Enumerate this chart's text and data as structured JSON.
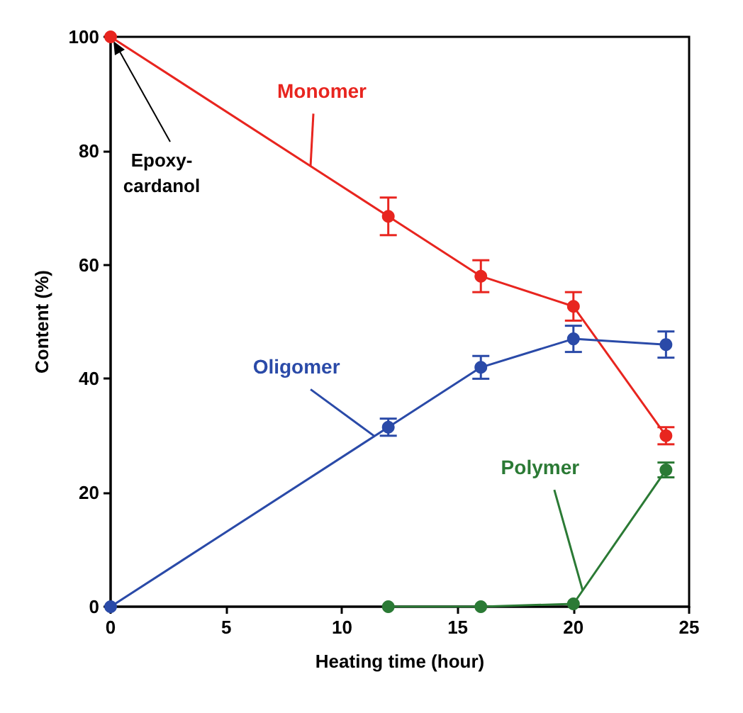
{
  "chart_data": {
    "type": "line",
    "xlabel": "Heating time (hour)",
    "ylabel": "Content (%)",
    "xlim": [
      0,
      25
    ],
    "xticks": [
      0,
      5,
      10,
      15,
      20,
      25
    ],
    "ylim": [
      0,
      100
    ],
    "yticks": [
      0,
      20,
      40,
      60,
      80,
      100
    ],
    "series": [
      {
        "name": "Monomer",
        "color": "#e8251f",
        "x": [
          0,
          12,
          16,
          20,
          24
        ],
        "values": [
          100,
          68.5,
          58,
          52.7,
          30
        ],
        "errors": [
          null,
          3.3,
          2.8,
          2.5,
          1.5
        ]
      },
      {
        "name": "Oligomer",
        "color": "#2a4aa8",
        "x": [
          0,
          12,
          16,
          20,
          24
        ],
        "values": [
          0,
          31.5,
          42,
          47,
          46
        ],
        "errors": [
          null,
          1.5,
          2.0,
          2.3,
          2.3
        ]
      },
      {
        "name": "Polymer",
        "color": "#2b7a35",
        "x": [
          12,
          16,
          20,
          24
        ],
        "values": [
          0,
          0,
          0.5,
          24
        ],
        "errors": [
          null,
          null,
          null,
          1.3
        ]
      }
    ],
    "annotations": [
      {
        "text": "Epoxy-\ncardanol",
        "x": 0,
        "y": 100
      }
    ],
    "marker": "circle",
    "line_style": "solid",
    "grid": false,
    "legend": false
  }
}
